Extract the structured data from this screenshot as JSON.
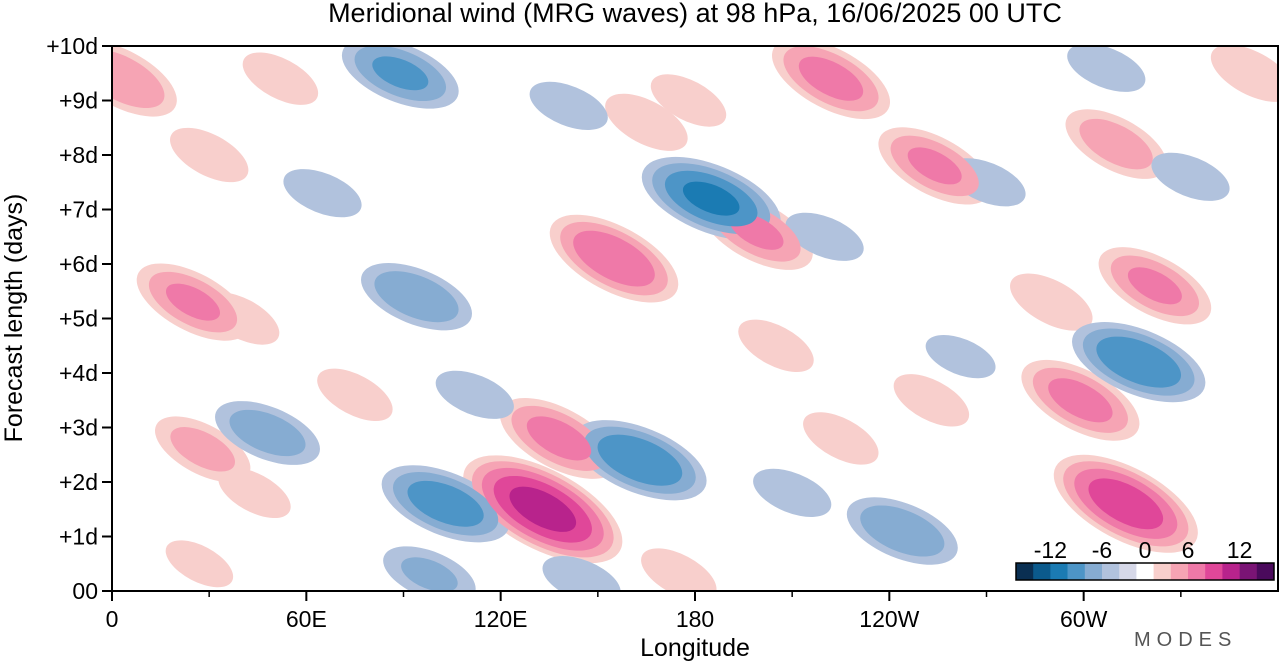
{
  "chart_data": {
    "type": "heatmap",
    "title": "Meridional wind (MRG waves) at  98 hPa,  16/06/2025  00 UTC",
    "xlabel": "Longitude",
    "ylabel": "Forecast length (days)",
    "x_ticks": [
      "0",
      "60E",
      "120E",
      "180",
      "120W",
      "60W"
    ],
    "y_ticks": [
      "00",
      "+1d",
      "+2d",
      "+3d",
      "+4d",
      "+5d",
      "+6d",
      "+7d",
      "+8d",
      "+9d",
      "+10d"
    ],
    "xlim": [
      0,
      360
    ],
    "ylim": [
      0,
      10
    ],
    "colorbar": {
      "tick_labels": [
        "-12",
        "-6",
        "0",
        "6",
        "12"
      ],
      "levels": [
        -14,
        -12,
        -10,
        -8,
        -6,
        -4,
        -2,
        2,
        4,
        6,
        8,
        10,
        12,
        14
      ],
      "colors": [
        "#0a2f52",
        "#0b5a8c",
        "#1b7bb3",
        "#4d95c7",
        "#86acd2",
        "#b1c2dd",
        "#d6d8e8",
        "#ffffff",
        "#f8cfcc",
        "#f6a4b4",
        "#ef79a8",
        "#e04799",
        "#b8238c",
        "#7a1475",
        "#4a0a5c"
      ]
    },
    "features": [
      {
        "sign": "pos",
        "lon": 3,
        "day": 9.4,
        "peak": 5.8
      },
      {
        "sign": "pos",
        "lon": 30,
        "day": 8.0,
        "peak": 3.2
      },
      {
        "sign": "pos",
        "lon": 52,
        "day": 9.4,
        "peak": 3.0
      },
      {
        "sign": "pos",
        "lon": 25,
        "day": 5.3,
        "peak": 6.0
      },
      {
        "sign": "pos",
        "lon": 40,
        "day": 5.0,
        "peak": 3.0
      },
      {
        "sign": "pos",
        "lon": 28,
        "day": 2.6,
        "peak": 4.5
      },
      {
        "sign": "pos",
        "lon": 44,
        "day": 1.8,
        "peak": 2.8
      },
      {
        "sign": "pos",
        "lon": 75,
        "day": 3.6,
        "peak": 3.0
      },
      {
        "sign": "pos",
        "lon": 27,
        "day": 0.5,
        "peak": 2.5
      },
      {
        "sign": "pos",
        "lon": 133,
        "day": 1.5,
        "peak": 10.5
      },
      {
        "sign": "pos",
        "lon": 138,
        "day": 2.8,
        "peak": 6.5
      },
      {
        "sign": "pos",
        "lon": 155,
        "day": 6.1,
        "peak": 7.5
      },
      {
        "sign": "pos",
        "lon": 165,
        "day": 8.6,
        "peak": 3.5
      },
      {
        "sign": "pos",
        "lon": 178,
        "day": 9.0,
        "peak": 3.0
      },
      {
        "sign": "pos",
        "lon": 199,
        "day": 6.6,
        "peak": 6.0
      },
      {
        "sign": "pos",
        "lon": 205,
        "day": 4.5,
        "peak": 3.0
      },
      {
        "sign": "pos",
        "lon": 222,
        "day": 9.4,
        "peak": 6.5
      },
      {
        "sign": "pos",
        "lon": 175,
        "day": 0.3,
        "peak": 3.0
      },
      {
        "sign": "pos",
        "lon": 225,
        "day": 2.8,
        "peak": 3.0
      },
      {
        "sign": "pos",
        "lon": 254,
        "day": 7.8,
        "peak": 6.0
      },
      {
        "sign": "pos",
        "lon": 253,
        "day": 3.5,
        "peak": 3.0
      },
      {
        "sign": "pos",
        "lon": 299,
        "day": 3.5,
        "peak": 6.5
      },
      {
        "sign": "pos",
        "lon": 290,
        "day": 5.3,
        "peak": 3.5
      },
      {
        "sign": "pos",
        "lon": 310,
        "day": 8.2,
        "peak": 5.0
      },
      {
        "sign": "pos",
        "lon": 322,
        "day": 5.6,
        "peak": 6.0
      },
      {
        "sign": "pos",
        "lon": 313,
        "day": 1.6,
        "peak": 9.0
      },
      {
        "sign": "pos",
        "lon": 352,
        "day": 9.5,
        "peak": 3.5
      },
      {
        "sign": "neg",
        "lon": 89,
        "day": 9.5,
        "peak": -6.0
      },
      {
        "sign": "neg",
        "lon": 65,
        "day": 7.3,
        "peak": -3.0
      },
      {
        "sign": "neg",
        "lon": 94,
        "day": 5.4,
        "peak": -5.5
      },
      {
        "sign": "neg",
        "lon": 48,
        "day": 2.9,
        "peak": -5.0
      },
      {
        "sign": "neg",
        "lon": 103,
        "day": 1.6,
        "peak": -7.0
      },
      {
        "sign": "neg",
        "lon": 112,
        "day": 3.6,
        "peak": -3.0
      },
      {
        "sign": "neg",
        "lon": 98,
        "day": 0.3,
        "peak": -4.0
      },
      {
        "sign": "neg",
        "lon": 141,
        "day": 8.9,
        "peak": -3.0
      },
      {
        "sign": "neg",
        "lon": 163,
        "day": 2.4,
        "peak": -7.5
      },
      {
        "sign": "neg",
        "lon": 145,
        "day": 0.2,
        "peak": -3.0
      },
      {
        "sign": "neg",
        "lon": 185,
        "day": 7.2,
        "peak": -8.0
      },
      {
        "sign": "neg",
        "lon": 220,
        "day": 6.5,
        "peak": -3.0
      },
      {
        "sign": "neg",
        "lon": 210,
        "day": 1.8,
        "peak": -3.0
      },
      {
        "sign": "neg",
        "lon": 244,
        "day": 1.1,
        "peak": -5.5
      },
      {
        "sign": "neg",
        "lon": 270,
        "day": 7.5,
        "peak": -3.0
      },
      {
        "sign": "neg",
        "lon": 262,
        "day": 4.3,
        "peak": -2.5
      },
      {
        "sign": "neg",
        "lon": 317,
        "day": 4.2,
        "peak": -7.5
      },
      {
        "sign": "neg",
        "lon": 333,
        "day": 7.6,
        "peak": -3.0
      },
      {
        "sign": "neg",
        "lon": 307,
        "day": 9.6,
        "peak": -3.0
      }
    ]
  },
  "brand": "MODES"
}
